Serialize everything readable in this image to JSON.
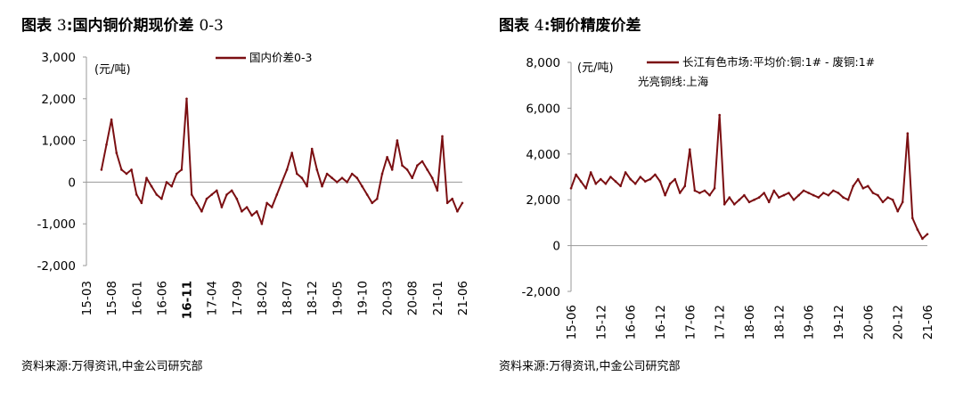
{
  "charts": [
    {
      "id": "left",
      "figure_label": "图表",
      "figure_number": "3",
      "figure_separator": ":",
      "title": "国内铜价期现价差",
      "title_suffix": "0-3",
      "source": "资料来源:万得资讯,中金公司研究部",
      "line_color": "#7b0f12",
      "chart_data": {
        "type": "line",
        "unit": "(元/吨)",
        "legend": [
          "国内价差0-3"
        ],
        "ylim": [
          -2000,
          3000
        ],
        "yticks": [
          -2000,
          -1000,
          0,
          1000,
          2000,
          3000
        ],
        "ytick_labels": [
          "-2,000",
          "-1,000",
          "0",
          "1,000",
          "2,000",
          "3,000"
        ],
        "x_labels": [
          "15-03",
          "15-08",
          "16-01",
          "16-06",
          "16-11",
          "17-04",
          "17-09",
          "18-02",
          "18-07",
          "18-12",
          "19-05",
          "19-10",
          "20-03",
          "20-08",
          "21-01",
          "21-06"
        ],
        "x_label_bold_index": 4,
        "series": [
          {
            "name": "国内价差0-3",
            "x": [
              "15-06",
              "15-07",
              "15-08",
              "15-09",
              "15-10",
              "15-11",
              "15-12",
              "16-01",
              "16-02",
              "16-03",
              "16-04",
              "16-05",
              "16-06",
              "16-07",
              "16-08",
              "16-09",
              "16-10",
              "16-11",
              "16-12",
              "17-01",
              "17-02",
              "17-03",
              "17-04",
              "17-05",
              "17-06",
              "17-07",
              "17-08",
              "17-09",
              "17-10",
              "17-11",
              "17-12",
              "18-01",
              "18-02",
              "18-03",
              "18-04",
              "18-05",
              "18-06",
              "18-07",
              "18-08",
              "18-09",
              "18-10",
              "18-11",
              "18-12",
              "19-01",
              "19-02",
              "19-03",
              "19-04",
              "19-05",
              "19-06",
              "19-07",
              "19-08",
              "19-09",
              "19-10",
              "19-11",
              "19-12",
              "20-01",
              "20-02",
              "20-03",
              "20-04",
              "20-05",
              "20-06",
              "20-07",
              "20-08",
              "20-09",
              "20-10",
              "20-11",
              "20-12",
              "21-01",
              "21-02",
              "21-03",
              "21-04",
              "21-05",
              "21-06"
            ],
            "values": [
              300,
              900,
              1500,
              700,
              300,
              200,
              300,
              -300,
              -500,
              100,
              -100,
              -300,
              -400,
              0,
              -100,
              200,
              300,
              2000,
              -300,
              -500,
              -700,
              -400,
              -300,
              -200,
              -600,
              -300,
              -200,
              -400,
              -700,
              -600,
              -800,
              -700,
              -1000,
              -500,
              -600,
              -300,
              0,
              300,
              700,
              200,
              100,
              -100,
              800,
              300,
              -100,
              200,
              100,
              0,
              100,
              0,
              200,
              100,
              -100,
              -300,
              -500,
              -400,
              200,
              600,
              300,
              1000,
              400,
              300,
              100,
              400,
              500,
              300,
              100,
              -200,
              1100,
              -500,
              -400,
              -700,
              -500
            ]
          }
        ]
      }
    },
    {
      "id": "right",
      "figure_label": "图表",
      "figure_number": "4",
      "figure_separator": ":",
      "title": "铜价精废价差",
      "title_suffix": "",
      "source": "资料来源:万得资讯,中金公司研究部",
      "line_color": "#7b0f12",
      "chart_data": {
        "type": "line",
        "unit": "(元/吨)",
        "legend": [
          "长江有色市场:平均价:铜:1# - 废铜:1#",
          "光亮铜线:上海"
        ],
        "ylim": [
          -2000,
          8000
        ],
        "yticks": [
          -2000,
          0,
          2000,
          4000,
          6000,
          8000
        ],
        "ytick_labels": [
          "-2,000",
          "0",
          "2,000",
          "4,000",
          "6,000",
          "8,000"
        ],
        "x_labels": [
          "15-06",
          "15-12",
          "16-06",
          "16-12",
          "17-06",
          "17-12",
          "18-06",
          "18-12",
          "19-06",
          "19-12",
          "20-06",
          "20-12",
          "21-06"
        ],
        "series": [
          {
            "name": "长江有色市场:平均价:铜:1# - 废铜:1# 光亮铜线:上海",
            "x": [
              "15-06",
              "15-07",
              "15-08",
              "15-09",
              "15-10",
              "15-11",
              "15-12",
              "16-01",
              "16-02",
              "16-03",
              "16-04",
              "16-05",
              "16-06",
              "16-07",
              "16-08",
              "16-09",
              "16-10",
              "16-11",
              "16-12",
              "17-01",
              "17-02",
              "17-03",
              "17-04",
              "17-05",
              "17-06",
              "17-07",
              "17-08",
              "17-09",
              "17-10",
              "17-11",
              "17-12",
              "18-01",
              "18-02",
              "18-03",
              "18-04",
              "18-05",
              "18-06",
              "18-07",
              "18-08",
              "18-09",
              "18-10",
              "18-11",
              "18-12",
              "19-01",
              "19-02",
              "19-03",
              "19-04",
              "19-05",
              "19-06",
              "19-07",
              "19-08",
              "19-09",
              "19-10",
              "19-11",
              "19-12",
              "20-01",
              "20-02",
              "20-03",
              "20-04",
              "20-05",
              "20-06",
              "20-07",
              "20-08",
              "20-09",
              "20-10",
              "20-11",
              "20-12",
              "21-01",
              "21-02",
              "21-03",
              "21-04",
              "21-05",
              "21-06"
            ],
            "values": [
              2500,
              3100,
              2800,
              2500,
              3200,
              2700,
              2900,
              2700,
              3000,
              2800,
              2600,
              3200,
              2900,
              2700,
              3000,
              2800,
              2900,
              3100,
              2800,
              2200,
              2700,
              2900,
              2300,
              2600,
              4200,
              2400,
              2300,
              2400,
              2200,
              2500,
              5700,
              1800,
              2100,
              1800,
              2000,
              2200,
              1900,
              2000,
              2100,
              2300,
              1900,
              2400,
              2100,
              2200,
              2300,
              2000,
              2200,
              2400,
              2300,
              2200,
              2100,
              2300,
              2200,
              2400,
              2300,
              2100,
              2000,
              2600,
              2900,
              2500,
              2600,
              2300,
              2200,
              1900,
              2100,
              2000,
              1500,
              1900,
              4900,
              1200,
              700,
              300,
              500
            ]
          }
        ]
      }
    }
  ]
}
